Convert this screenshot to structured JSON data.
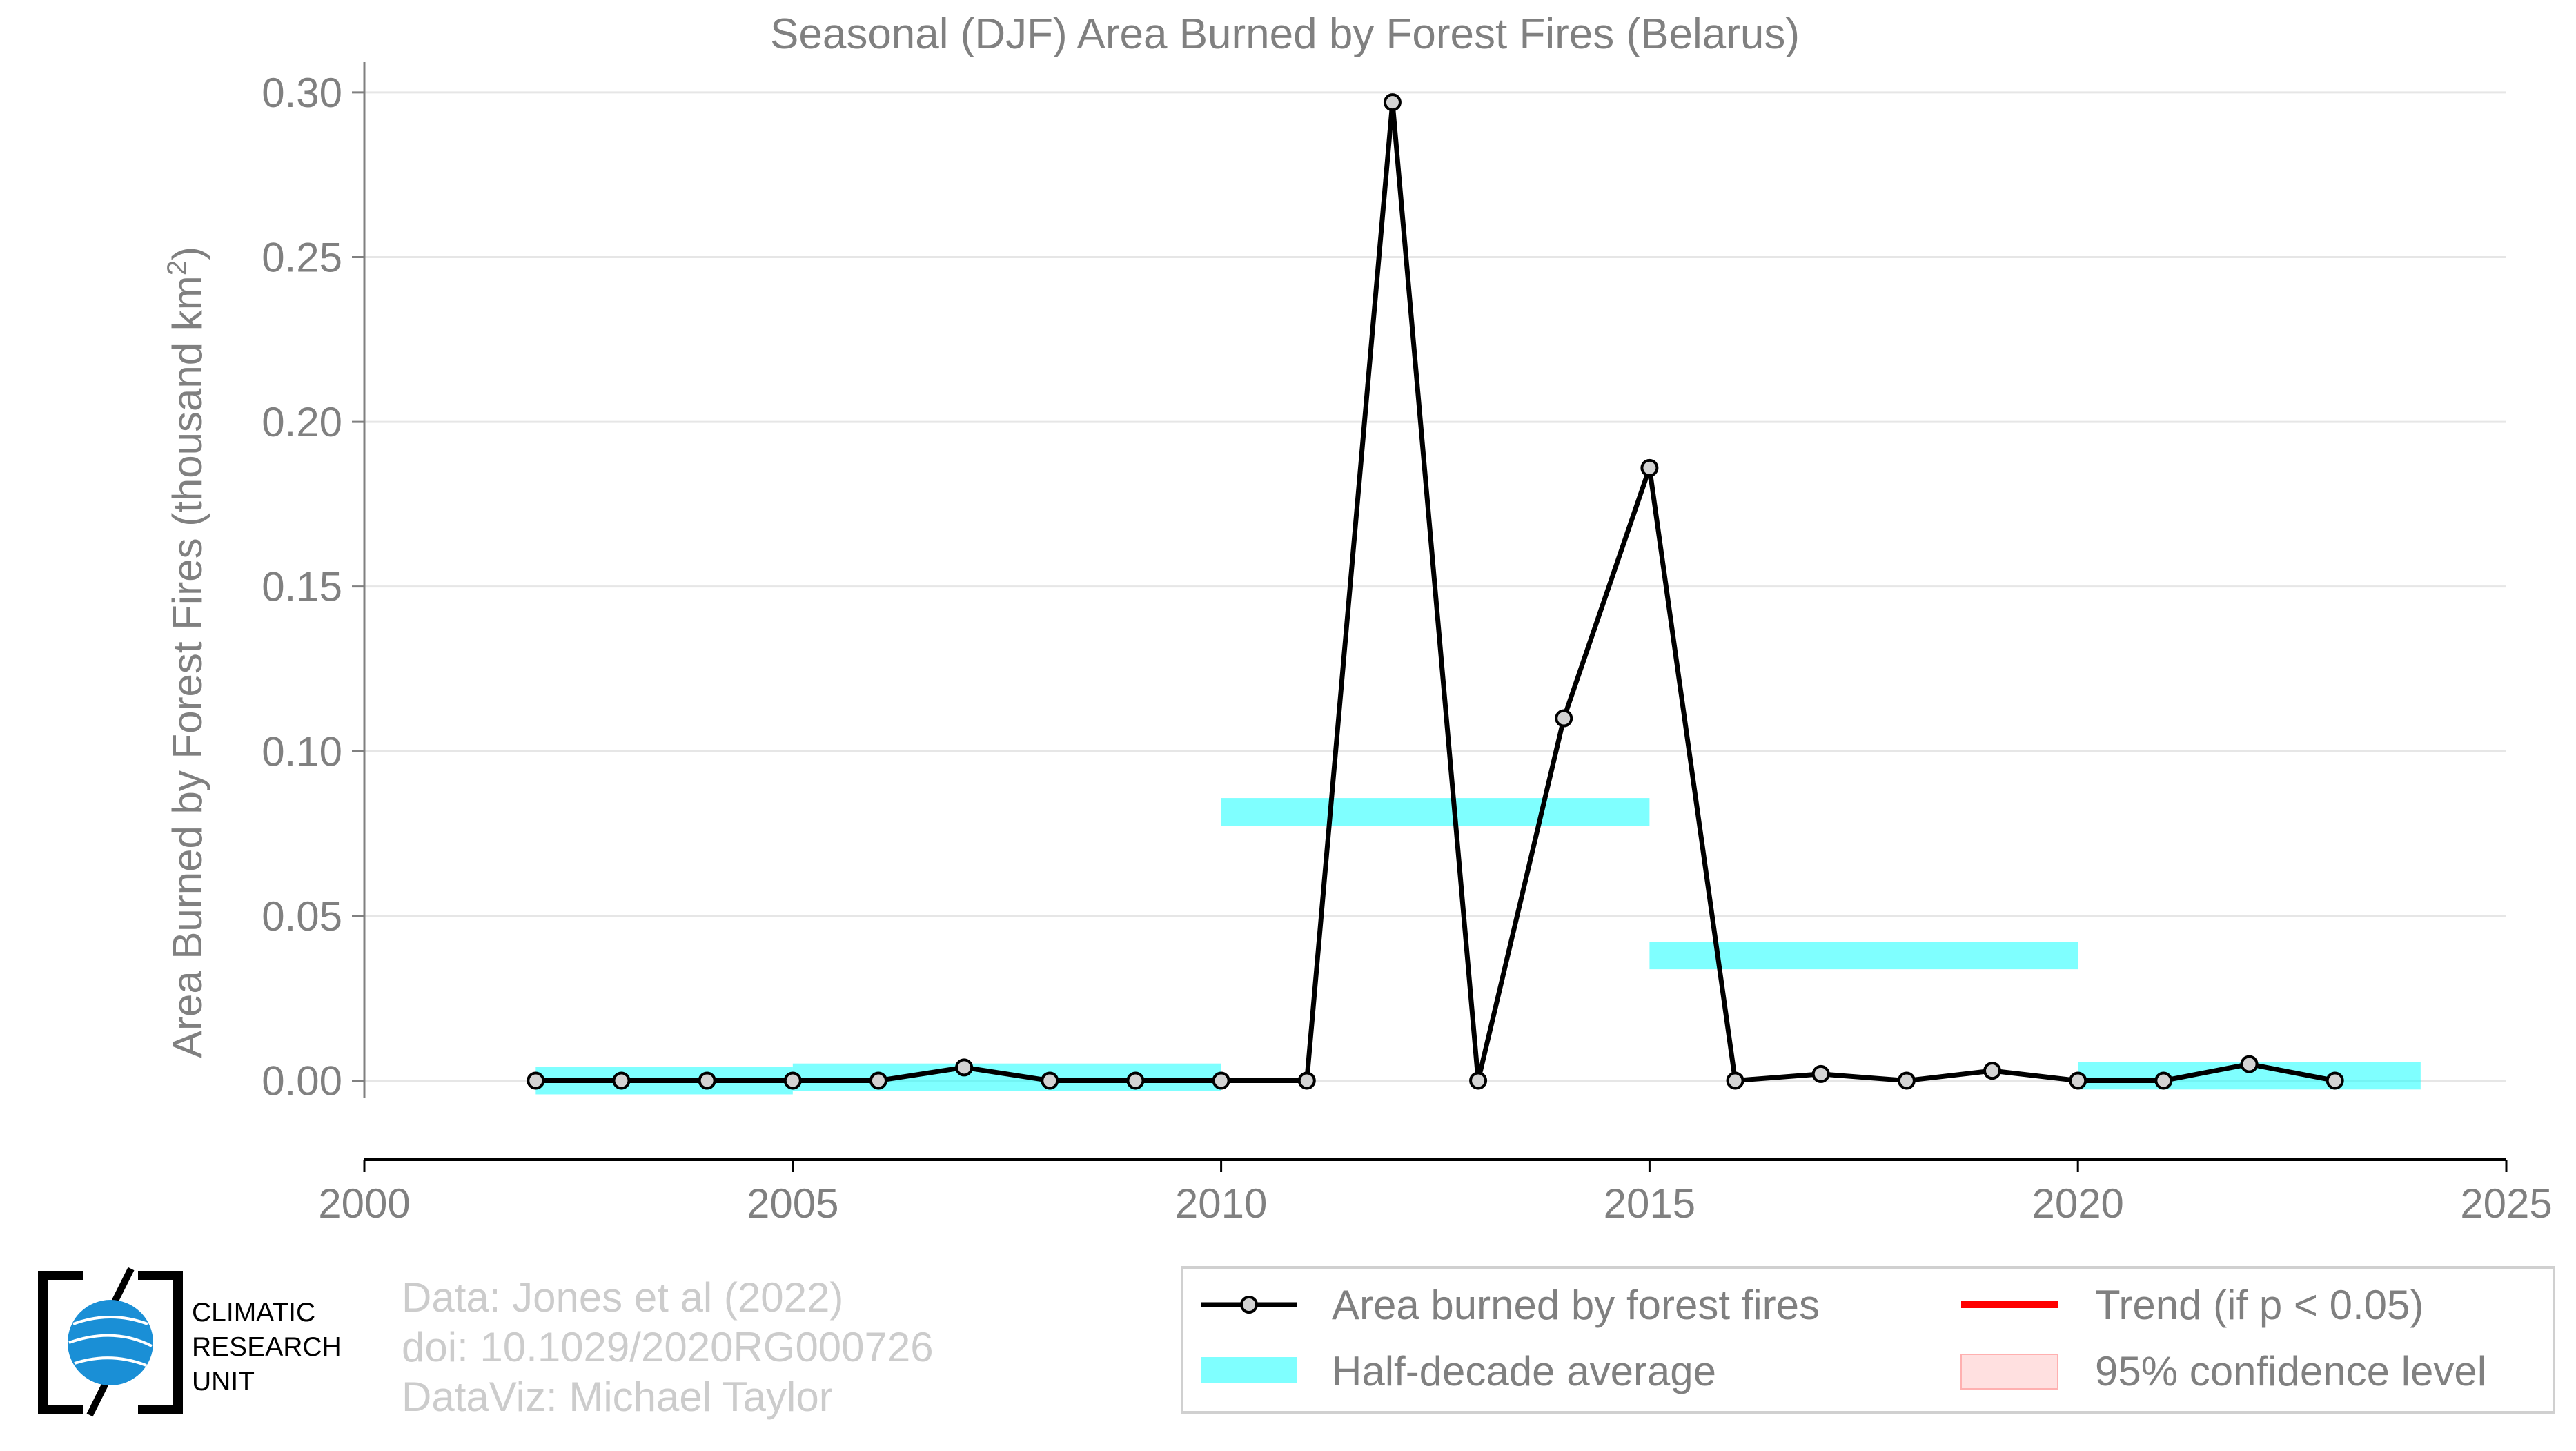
{
  "chart_data": {
    "type": "line",
    "title": "Seasonal (DJF) Area Burned by Forest Fires (Belarus)",
    "ylabel": "Area Burned by Forest Fires (thousand km",
    "ylabel_sup": "2",
    "ylabel_end": ")",
    "xlabel": "",
    "xlim": [
      2000,
      2025
    ],
    "ylim": [
      -0.024,
      0.305
    ],
    "grid": "horizontal",
    "x_ticks": [
      "2000",
      "2005",
      "2010",
      "2015",
      "2020",
      "2025"
    ],
    "y_ticks": [
      "0.00",
      "0.05",
      "0.10",
      "0.15",
      "0.20",
      "0.25",
      "0.30"
    ],
    "series": [
      {
        "name": "Area burned by forest fires",
        "type": "line",
        "color": "#000000",
        "marker_fill": "#d3d3d3",
        "x": [
          2002,
          2003,
          2004,
          2005,
          2006,
          2007,
          2008,
          2009,
          2010,
          2011,
          2012,
          2013,
          2014,
          2015,
          2016,
          2017,
          2018,
          2019,
          2020,
          2021,
          2022,
          2023
        ],
        "y": [
          0.0,
          0.0,
          0.0,
          0.0,
          0.0,
          0.004,
          0.0,
          0.0,
          0.0,
          0.0,
          0.297,
          0.0,
          0.11,
          0.186,
          0.0,
          0.002,
          0.0,
          0.003,
          0.0,
          0.0,
          0.005,
          0.0
        ]
      },
      {
        "name": "Half-decade average",
        "type": "step-bands",
        "color": "#00ffff",
        "segments": [
          {
            "x0": 2002,
            "x1": 2005,
            "y": 0.0
          },
          {
            "x0": 2005,
            "x1": 2010,
            "y": 0.001
          },
          {
            "x0": 2010,
            "x1": 2015,
            "y": 0.0816
          },
          {
            "x0": 2015,
            "x1": 2020,
            "y": 0.038
          },
          {
            "x0": 2020,
            "x1": 2024,
            "y": 0.0015
          }
        ]
      }
    ],
    "legend": {
      "placement": "bottom-right",
      "items": [
        {
          "label": "Area burned by forest fires",
          "kind": "line-marker",
          "color": "#000000"
        },
        {
          "label": "Trend (if p < 0.05)",
          "kind": "line",
          "color": "#ff0000"
        },
        {
          "label": "Half-decade average",
          "kind": "band",
          "color": "#00ffff"
        },
        {
          "label": "95% confidence level",
          "kind": "patch",
          "color": "#ffcccc"
        }
      ]
    }
  },
  "footer": {
    "logo_text": [
      "CLIMATIC",
      "RESEARCH",
      "UNIT"
    ],
    "credits": [
      "Data: Jones et al (2022)",
      "doi: 10.1029/2020RG000726",
      "DataViz: Michael Taylor"
    ]
  },
  "colors": {
    "axis_text": "#808080",
    "grid": "#e6e6e6",
    "credit_text": "#cccccc",
    "logo_blue": "#1a8fd6"
  }
}
